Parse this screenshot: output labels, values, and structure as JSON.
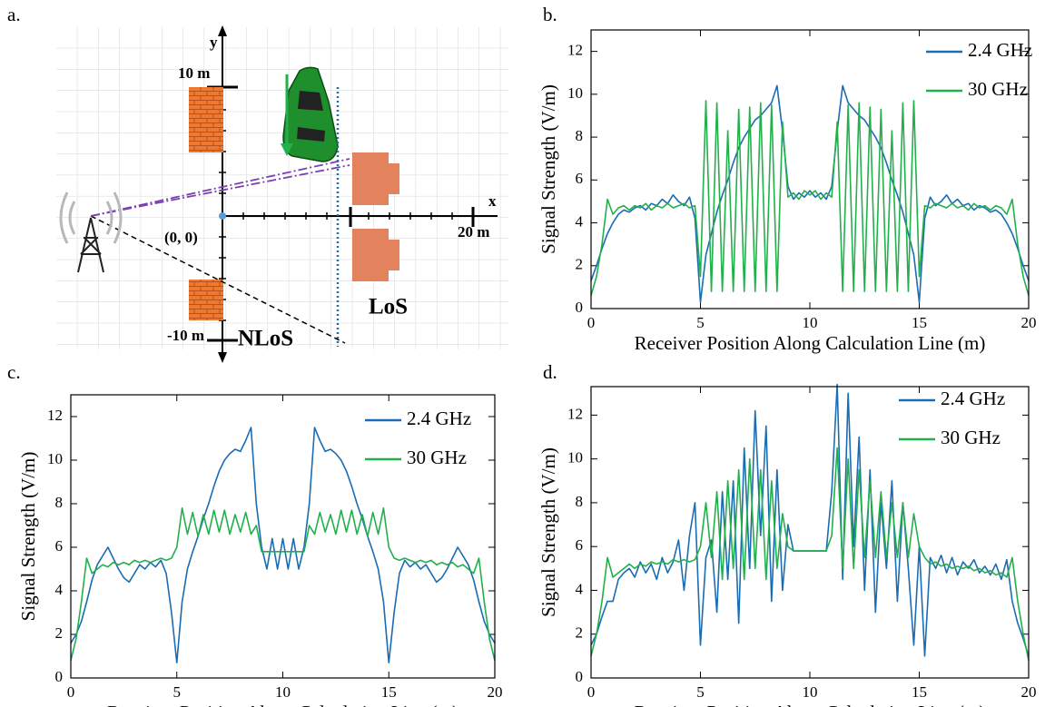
{
  "diagram": {
    "panel_label": "a.",
    "y_axis": "y",
    "x_axis": "x",
    "y_max_label": "10 m",
    "y_min_label": "-10 m",
    "x_max_label": "20 m",
    "origin_label": "(0, 0)",
    "nlos_label": "NLoS",
    "los_label": "LoS"
  },
  "chart_data": [
    {
      "type": "line",
      "panel_label": "b.",
      "x_label": "Receiver Position Along Calculation Line (m)",
      "y_label": "Signal Strength (V/m)",
      "x": [
        0,
        0.25,
        0.5,
        0.75,
        1,
        1.25,
        1.5,
        1.75,
        2,
        2.25,
        2.5,
        2.75,
        3,
        3.25,
        3.5,
        3.75,
        4,
        4.25,
        4.5,
        4.75,
        5,
        5.25,
        5.5,
        5.75,
        6,
        6.25,
        6.5,
        6.75,
        7,
        7.25,
        7.5,
        7.75,
        8,
        8.25,
        8.5,
        8.75,
        9,
        9.25,
        9.5,
        9.75,
        10,
        10.25,
        10.5,
        10.75,
        11,
        11.25,
        11.5,
        11.75,
        12,
        12.25,
        12.5,
        12.75,
        13,
        13.25,
        13.5,
        13.75,
        14,
        14.25,
        14.5,
        14.75,
        15,
        15.25,
        15.5,
        15.75,
        16,
        16.25,
        16.5,
        16.75,
        17,
        17.25,
        17.5,
        17.75,
        18,
        18.25,
        18.5,
        18.75,
        19,
        19.25,
        19.5,
        19.75,
        20
      ],
      "series": [
        {
          "name": "2.4 GHz",
          "color": "#1a6cb3",
          "values": [
            1.3,
            2.0,
            2.8,
            3.5,
            4.0,
            4.4,
            4.6,
            4.5,
            4.7,
            4.8,
            4.6,
            4.9,
            4.8,
            5.1,
            4.9,
            5.3,
            5.0,
            4.8,
            5.2,
            4.2,
            0.3,
            2.5,
            3.5,
            4.5,
            5.3,
            6.0,
            6.8,
            7.5,
            8.0,
            8.4,
            8.8,
            9.0,
            9.3,
            9.6,
            10.4,
            8.3,
            5.7,
            5.1,
            5.4,
            5.2,
            5.5,
            5.2,
            5.4,
            5.1,
            5.7,
            8.3,
            10.4,
            9.6,
            9.3,
            9.0,
            8.8,
            8.4,
            8.0,
            7.5,
            6.8,
            6.0,
            5.3,
            4.5,
            3.5,
            2.5,
            0.3,
            4.2,
            5.2,
            4.8,
            5.0,
            5.3,
            4.9,
            5.1,
            4.8,
            4.9,
            4.6,
            4.8,
            4.7,
            4.5,
            4.6,
            4.4,
            4.0,
            3.5,
            2.8,
            2.0,
            1.3
          ]
        },
        {
          "name": "30 GHz",
          "color": "#22b04b",
          "values": [
            0.6,
            1.5,
            3.0,
            5.1,
            4.4,
            4.7,
            4.8,
            4.6,
            4.8,
            4.7,
            4.9,
            4.6,
            4.8,
            4.7,
            4.9,
            4.7,
            4.8,
            4.9,
            4.7,
            4.8,
            1.5,
            9.7,
            0.8,
            9.6,
            0.8,
            8.3,
            0.8,
            9.3,
            0.8,
            9.4,
            0.8,
            9.6,
            0.8,
            9.5,
            0.8,
            8.7,
            5.2,
            5.4,
            5.1,
            5.5,
            5.3,
            5.5,
            5.1,
            5.4,
            5.2,
            8.7,
            0.8,
            9.5,
            0.8,
            9.6,
            0.8,
            9.4,
            0.8,
            9.3,
            0.8,
            8.3,
            0.8,
            9.6,
            0.8,
            9.7,
            1.5,
            4.8,
            4.7,
            4.9,
            4.8,
            4.7,
            4.9,
            4.7,
            4.8,
            4.6,
            4.9,
            4.7,
            4.8,
            4.6,
            4.8,
            4.7,
            4.4,
            5.1,
            3.0,
            1.5,
            0.6
          ]
        }
      ],
      "xlim": [
        0,
        20
      ],
      "xticks": [
        0,
        5,
        10,
        15,
        20
      ],
      "ylim": [
        0,
        13
      ],
      "yticks": [
        0,
        2,
        4,
        6,
        8,
        10,
        12
      ],
      "legend": "upper right"
    },
    {
      "type": "line",
      "panel_label": "c.",
      "x_label": "Receiver Position Along Calculation Line (m)",
      "y_label": "Signal Strength (V/m)",
      "x": [
        0,
        0.25,
        0.5,
        0.75,
        1,
        1.25,
        1.5,
        1.75,
        2,
        2.25,
        2.5,
        2.75,
        3,
        3.25,
        3.5,
        3.75,
        4,
        4.25,
        4.5,
        4.75,
        5,
        5.25,
        5.5,
        5.75,
        6,
        6.25,
        6.5,
        6.75,
        7,
        7.25,
        7.5,
        7.75,
        8,
        8.25,
        8.5,
        8.75,
        9,
        9.25,
        9.5,
        9.75,
        10,
        10.25,
        10.5,
        10.75,
        11,
        11.25,
        11.5,
        11.75,
        12,
        12.25,
        12.5,
        12.75,
        13,
        13.25,
        13.5,
        13.75,
        14,
        14.25,
        14.5,
        14.75,
        15,
        15.25,
        15.5,
        15.75,
        16,
        16.25,
        16.5,
        16.75,
        17,
        17.25,
        17.5,
        17.75,
        18,
        18.25,
        18.5,
        18.75,
        19,
        19.25,
        19.5,
        19.75,
        20
      ],
      "series": [
        {
          "name": "2.4 GHz",
          "color": "#1a6cb3",
          "values": [
            1.6,
            2.0,
            2.6,
            3.5,
            4.5,
            5.2,
            5.6,
            6.0,
            5.5,
            5.0,
            4.6,
            4.4,
            4.8,
            5.2,
            5.0,
            5.3,
            5.1,
            5.4,
            4.8,
            3.0,
            0.7,
            3.5,
            5.0,
            5.8,
            6.5,
            7.3,
            8.0,
            8.8,
            9.5,
            10.0,
            10.3,
            10.5,
            10.4,
            10.9,
            11.5,
            8.0,
            6.0,
            5.0,
            6.4,
            5.0,
            6.4,
            5.0,
            6.4,
            5.0,
            6.0,
            8.0,
            11.5,
            10.9,
            10.4,
            10.5,
            10.3,
            10.0,
            9.5,
            8.8,
            8.0,
            7.3,
            6.5,
            5.8,
            5.0,
            3.5,
            0.7,
            3.0,
            4.8,
            5.4,
            5.1,
            5.3,
            5.0,
            5.2,
            4.8,
            4.4,
            4.6,
            5.0,
            5.5,
            6.0,
            5.6,
            5.2,
            4.5,
            3.5,
            2.6,
            2.0,
            1.6
          ]
        },
        {
          "name": "30 GHz",
          "color": "#22b04b",
          "values": [
            0.8,
            1.8,
            3.5,
            5.5,
            4.8,
            5.0,
            5.2,
            5.1,
            5.3,
            5.2,
            5.3,
            5.2,
            5.4,
            5.3,
            5.4,
            5.3,
            5.4,
            5.5,
            5.4,
            5.5,
            6.0,
            7.8,
            6.6,
            7.6,
            6.5,
            7.5,
            6.6,
            7.7,
            6.7,
            7.7,
            6.6,
            7.5,
            6.7,
            7.6,
            6.6,
            7.0,
            5.8,
            5.8,
            5.8,
            5.8,
            5.8,
            5.8,
            5.8,
            5.8,
            5.8,
            7.0,
            6.6,
            7.6,
            6.7,
            7.5,
            6.6,
            7.7,
            6.7,
            7.7,
            6.6,
            7.5,
            6.5,
            7.6,
            6.6,
            7.8,
            6.0,
            5.5,
            5.4,
            5.5,
            5.4,
            5.3,
            5.4,
            5.3,
            5.4,
            5.2,
            5.3,
            5.2,
            5.3,
            5.1,
            5.2,
            5.0,
            4.8,
            5.5,
            3.5,
            1.8,
            0.8
          ]
        }
      ],
      "xlim": [
        0,
        20
      ],
      "xticks": [
        0,
        5,
        10,
        15,
        20
      ],
      "ylim": [
        0,
        13
      ],
      "yticks": [
        0,
        2,
        4,
        6,
        8,
        10,
        12
      ],
      "legend": "upper right"
    },
    {
      "type": "line",
      "panel_label": "d.",
      "x_label": "Receiver Position Along Calculation Line (m)",
      "y_label": "Signal Strength (V/m)",
      "x": [
        0,
        0.25,
        0.5,
        0.75,
        1,
        1.25,
        1.5,
        1.75,
        2,
        2.25,
        2.5,
        2.75,
        3,
        3.25,
        3.5,
        3.75,
        4,
        4.25,
        4.5,
        4.75,
        5,
        5.25,
        5.5,
        5.75,
        6,
        6.25,
        6.5,
        6.75,
        7,
        7.25,
        7.5,
        7.75,
        8,
        8.25,
        8.5,
        8.75,
        9,
        9.25,
        9.5,
        9.75,
        10,
        10.25,
        10.5,
        10.75,
        11,
        11.25,
        11.5,
        11.75,
        12,
        12.25,
        12.5,
        12.75,
        13,
        13.25,
        13.5,
        13.75,
        14,
        14.25,
        14.5,
        14.75,
        15,
        15.25,
        15.5,
        15.75,
        16,
        16.25,
        16.5,
        16.75,
        17,
        17.25,
        17.5,
        17.75,
        18,
        18.25,
        18.5,
        18.75,
        19,
        19.25,
        19.5,
        19.75,
        20
      ],
      "series": [
        {
          "name": "2.4 GHz",
          "color": "#1a6cb3",
          "values": [
            1.5,
            2.0,
            2.8,
            3.5,
            3.5,
            4.5,
            4.8,
            5.0,
            4.6,
            5.3,
            4.8,
            5.2,
            4.5,
            5.5,
            4.8,
            5.3,
            6.3,
            4.0,
            6.5,
            8.0,
            1.5,
            5.5,
            6.3,
            3.0,
            8.5,
            4.5,
            9.0,
            2.5,
            10.5,
            5.0,
            12.2,
            6.5,
            11.5,
            3.5,
            9.5,
            4.0,
            7.0,
            5.8,
            5.8,
            5.8,
            5.8,
            5.8,
            5.8,
            5.8,
            8.5,
            13.4,
            4.5,
            13.0,
            6.0,
            11.0,
            4.0,
            9.5,
            3.0,
            8.0,
            5.0,
            9.0,
            3.5,
            8.0,
            5.0,
            1.5,
            6.0,
            1.0,
            5.5,
            5.0,
            5.6,
            4.8,
            5.5,
            4.7,
            5.3,
            5.0,
            5.4,
            4.8,
            5.1,
            4.7,
            5.2,
            4.5,
            5.4,
            3.5,
            2.5,
            1.8,
            1.0
          ]
        },
        {
          "name": "30 GHz",
          "color": "#22b04b",
          "values": [
            1.0,
            2.0,
            3.5,
            5.5,
            4.6,
            4.8,
            5.0,
            5.2,
            5.0,
            5.2,
            5.1,
            5.3,
            5.2,
            5.3,
            5.2,
            5.4,
            5.3,
            5.4,
            5.3,
            5.4,
            6.0,
            8.0,
            5.5,
            8.5,
            4.5,
            9.0,
            5.0,
            9.5,
            4.5,
            10.0,
            5.0,
            9.5,
            4.5,
            9.0,
            5.0,
            7.5,
            6.0,
            5.8,
            5.8,
            5.8,
            5.8,
            5.8,
            5.8,
            5.8,
            6.5,
            10.5,
            5.0,
            10.0,
            5.0,
            9.5,
            5.5,
            9.0,
            5.5,
            8.5,
            5.5,
            8.0,
            5.5,
            8.0,
            5.5,
            7.5,
            6.0,
            5.5,
            5.2,
            5.3,
            5.1,
            5.2,
            5.0,
            5.1,
            5.0,
            5.1,
            4.9,
            5.0,
            4.8,
            4.9,
            4.7,
            4.8,
            4.6,
            5.5,
            3.5,
            2.0,
            0.8
          ]
        }
      ],
      "xlim": [
        0,
        20
      ],
      "xticks": [
        0,
        5,
        10,
        15,
        20
      ],
      "ylim": [
        0,
        13.3
      ],
      "yticks": [
        0,
        2,
        4,
        6,
        8,
        10,
        12
      ],
      "legend": "upper right"
    }
  ]
}
